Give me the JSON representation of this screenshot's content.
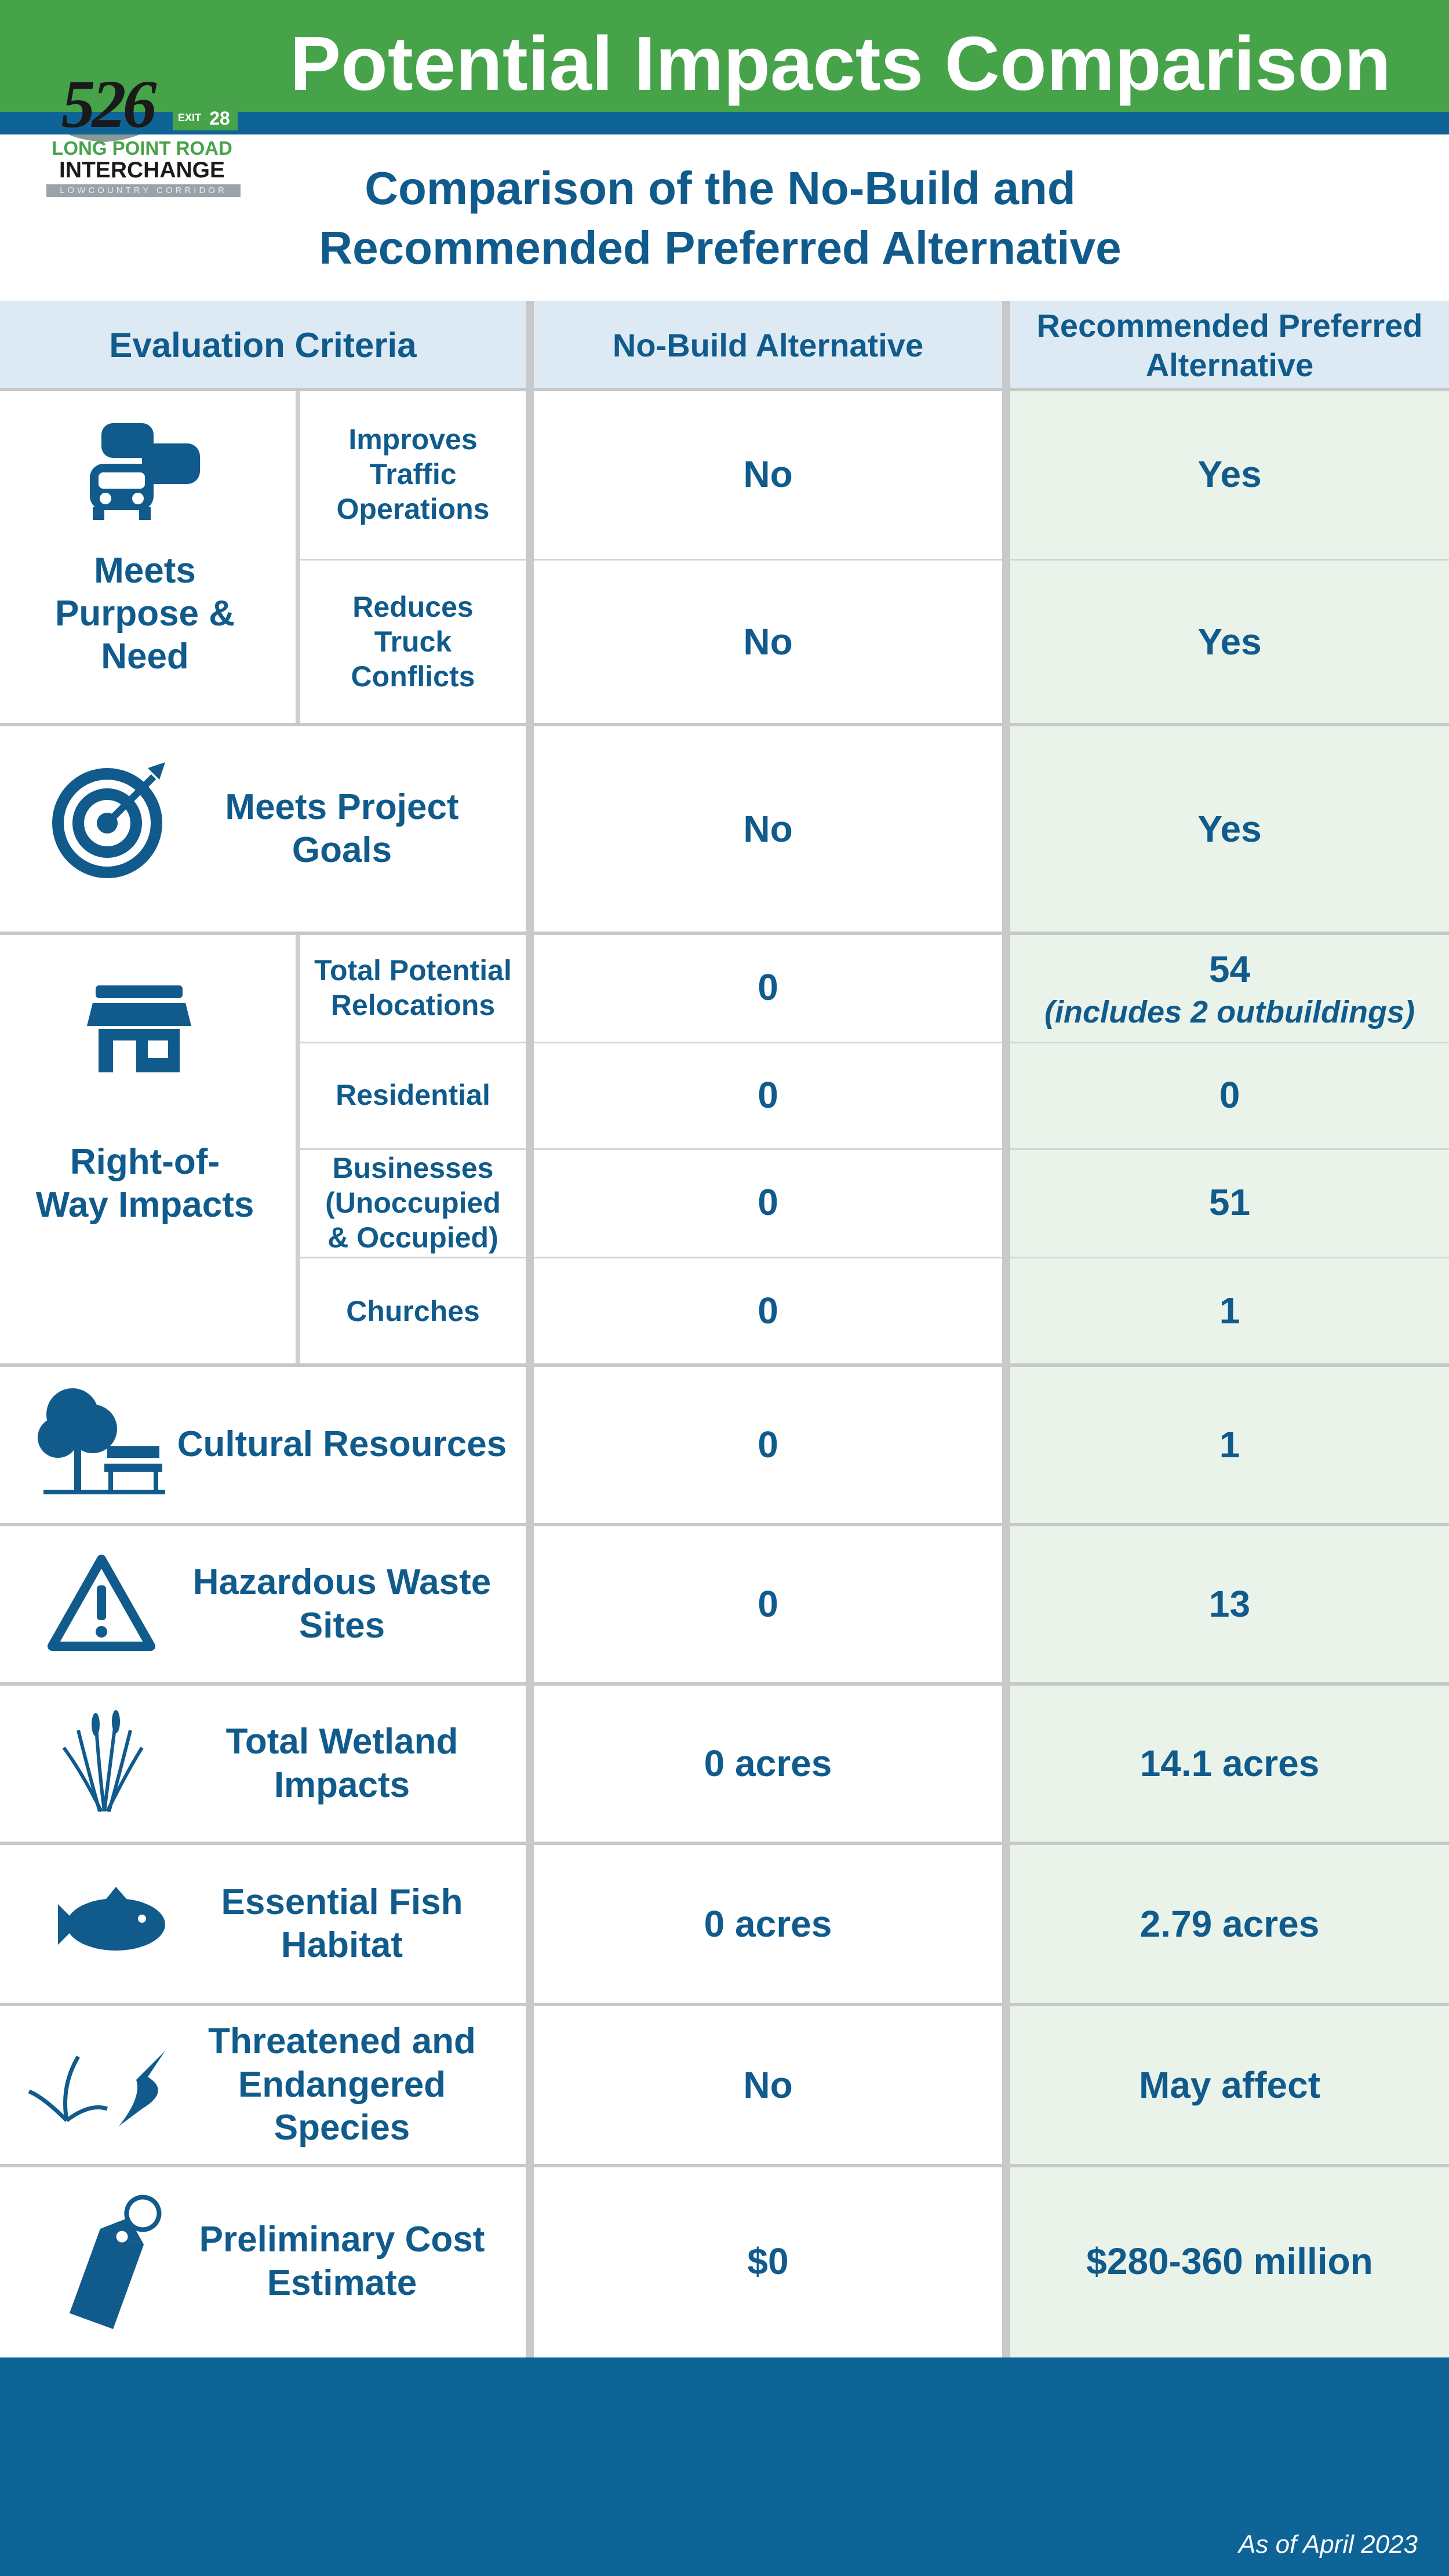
{
  "header": {
    "title": "Potential Impacts Comparison",
    "logo": {
      "route": "526",
      "exit": "EXIT",
      "exit_number": "28",
      "line1": "LONG POINT ROAD",
      "line2": "INTERCHANGE",
      "line3": "LOWCOUNTRY CORRIDOR"
    }
  },
  "subtitle": [
    "Comparison of the No-Build and",
    "Recommended Preferred Alternative"
  ],
  "table": {
    "columns": [
      "Evaluation Criteria",
      "No-Build Alternative",
      "Recommended Preferred Alternative"
    ],
    "rows": [
      {
        "criterion": "Meets Purpose & Need",
        "items": [
          {
            "subcriterion": "Improves Traffic Operations",
            "no_build": "No",
            "preferred": "Yes"
          },
          {
            "subcriterion": "Reduces Truck Conflicts",
            "no_build": "No",
            "preferred": "Yes"
          }
        ]
      },
      {
        "criterion": "Meets Project Goals",
        "no_build": "No",
        "preferred": "Yes"
      },
      {
        "criterion": "Right-of-Way Impacts",
        "items": [
          {
            "subcriterion": "Total Potential Relocations",
            "no_build": 0,
            "preferred": 54,
            "preferred_note": "(includes 2 outbuildings)"
          },
          {
            "subcriterion": "Residential",
            "no_build": 0,
            "preferred": 0
          },
          {
            "subcriterion": "Businesses (Unoccupied & Occupied)",
            "no_build": 0,
            "preferred": 51
          },
          {
            "subcriterion": "Churches",
            "no_build": 0,
            "preferred": 1
          }
        ]
      },
      {
        "criterion": "Cultural Resources",
        "no_build": 0,
        "preferred": 1
      },
      {
        "criterion": "Hazardous Waste Sites",
        "no_build": 0,
        "preferred": 13
      },
      {
        "criterion": "Total Wetland Impacts",
        "no_build": "0 acres",
        "preferred": "14.1 acres"
      },
      {
        "criterion": "Essential Fish Habitat",
        "no_build": "0 acres",
        "preferred": "2.79 acres"
      },
      {
        "criterion": "Threatened and Endangered Species",
        "no_build": "No",
        "preferred": "May affect"
      },
      {
        "criterion": "Preliminary Cost Estimate",
        "no_build": "$0",
        "preferred": "$280-360 million"
      }
    ]
  },
  "footer": "As of April 2023"
}
